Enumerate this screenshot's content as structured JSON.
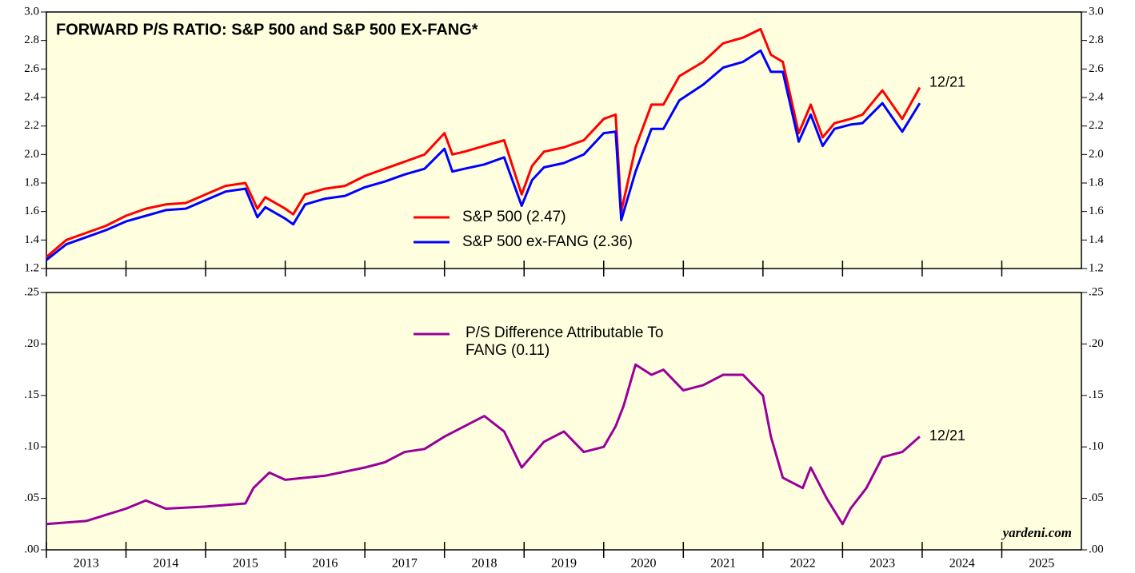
{
  "chart_data": [
    {
      "type": "line",
      "title": "FORWARD P/S RATIO: S&P 500 and S&P 500 EX-FANG*",
      "x": [
        2013.0,
        2013.25,
        2013.5,
        2013.75,
        2014.0,
        2014.25,
        2014.5,
        2014.75,
        2015.0,
        2015.25,
        2015.5,
        2015.65,
        2015.75,
        2016.0,
        2016.1,
        2016.25,
        2016.5,
        2016.75,
        2017.0,
        2017.25,
        2017.5,
        2017.75,
        2018.0,
        2018.1,
        2018.25,
        2018.5,
        2018.75,
        2018.97,
        2019.1,
        2019.25,
        2019.5,
        2019.75,
        2020.0,
        2020.15,
        2020.22,
        2020.4,
        2020.6,
        2020.75,
        2020.95,
        2021.25,
        2021.5,
        2021.75,
        2021.97,
        2022.1,
        2022.25,
        2022.45,
        2022.6,
        2022.75,
        2022.9,
        2023.1,
        2023.25,
        2023.5,
        2023.75,
        2023.97
      ],
      "series": [
        {
          "name": "S&P 500 (2.47)",
          "color": "#ff0000",
          "values": [
            1.28,
            1.4,
            1.45,
            1.5,
            1.57,
            1.62,
            1.65,
            1.66,
            1.72,
            1.78,
            1.8,
            1.62,
            1.7,
            1.62,
            1.58,
            1.72,
            1.76,
            1.78,
            1.85,
            1.9,
            1.95,
            2.0,
            2.15,
            2.0,
            2.02,
            2.06,
            2.1,
            1.72,
            1.92,
            2.02,
            2.05,
            2.1,
            2.25,
            2.28,
            1.6,
            2.05,
            2.35,
            2.35,
            2.55,
            2.65,
            2.78,
            2.82,
            2.88,
            2.7,
            2.65,
            2.15,
            2.35,
            2.12,
            2.22,
            2.25,
            2.28,
            2.45,
            2.25,
            2.47
          ]
        },
        {
          "name": "S&P 500 ex-FANG (2.36)",
          "color": "#0000ff",
          "values": [
            1.26,
            1.37,
            1.42,
            1.47,
            1.53,
            1.57,
            1.61,
            1.62,
            1.68,
            1.74,
            1.76,
            1.56,
            1.63,
            1.55,
            1.51,
            1.65,
            1.69,
            1.71,
            1.77,
            1.81,
            1.86,
            1.9,
            2.04,
            1.88,
            1.9,
            1.93,
            1.98,
            1.64,
            1.82,
            1.91,
            1.94,
            2.0,
            2.15,
            2.16,
            1.54,
            1.88,
            2.18,
            2.18,
            2.38,
            2.49,
            2.61,
            2.65,
            2.73,
            2.58,
            2.58,
            2.09,
            2.28,
            2.06,
            2.18,
            2.21,
            2.22,
            2.36,
            2.16,
            2.36
          ]
        }
      ],
      "annotation": "12/21",
      "xlim": [
        2013,
        2026
      ],
      "ylim": [
        1.2,
        3.0
      ],
      "yticks": [
        1.2,
        1.4,
        1.6,
        1.8,
        {
          "value": 2.0,
          "label": "2.0"
        },
        2.2,
        2.4,
        2.6,
        2.8,
        {
          "value": 3.0,
          "label": "3.0"
        }
      ]
    },
    {
      "type": "line",
      "x": [
        2013.0,
        2013.5,
        2014.0,
        2014.25,
        2014.5,
        2015.0,
        2015.5,
        2015.6,
        2015.8,
        2016.0,
        2016.5,
        2017.0,
        2017.25,
        2017.5,
        2017.75,
        2018.0,
        2018.5,
        2018.75,
        2018.97,
        2019.25,
        2019.5,
        2019.75,
        2020.0,
        2020.15,
        2020.25,
        2020.4,
        2020.6,
        2020.75,
        2021.0,
        2021.25,
        2021.5,
        2021.75,
        2022.0,
        2022.1,
        2022.25,
        2022.5,
        2022.6,
        2022.8,
        2023.0,
        2023.1,
        2023.3,
        2023.5,
        2023.75,
        2023.97
      ],
      "series": [
        {
          "name": "P/S Difference Attributable To FANG (0.11)",
          "color": "#990099",
          "values": [
            0.025,
            0.028,
            0.04,
            0.048,
            0.04,
            0.042,
            0.045,
            0.06,
            0.075,
            0.068,
            0.072,
            0.08,
            0.085,
            0.095,
            0.098,
            0.11,
            0.13,
            0.115,
            0.08,
            0.105,
            0.115,
            0.095,
            0.1,
            0.12,
            0.14,
            0.18,
            0.17,
            0.175,
            0.155,
            0.16,
            0.17,
            0.17,
            0.15,
            0.11,
            0.07,
            0.06,
            0.08,
            0.05,
            0.025,
            0.04,
            0.06,
            0.09,
            0.095,
            0.11
          ]
        }
      ],
      "annotation": "12/21",
      "source": "yardeni.com",
      "xlim": [
        2013,
        2026
      ],
      "xticks": [
        2013,
        2014,
        2015,
        2016,
        2017,
        2018,
        2019,
        2020,
        2021,
        2022,
        2023,
        2024,
        2025
      ],
      "ylim": [
        0,
        0.25
      ],
      "yticks": [
        {
          "value": 0,
          "label": ".00"
        },
        {
          "value": 0.05,
          "label": ".05"
        },
        {
          "value": 0.1,
          "label": ".10"
        },
        {
          "value": 0.15,
          "label": ".15"
        },
        {
          "value": 0.2,
          "label": ".20"
        },
        {
          "value": 0.25,
          "label": ".25"
        }
      ]
    }
  ]
}
